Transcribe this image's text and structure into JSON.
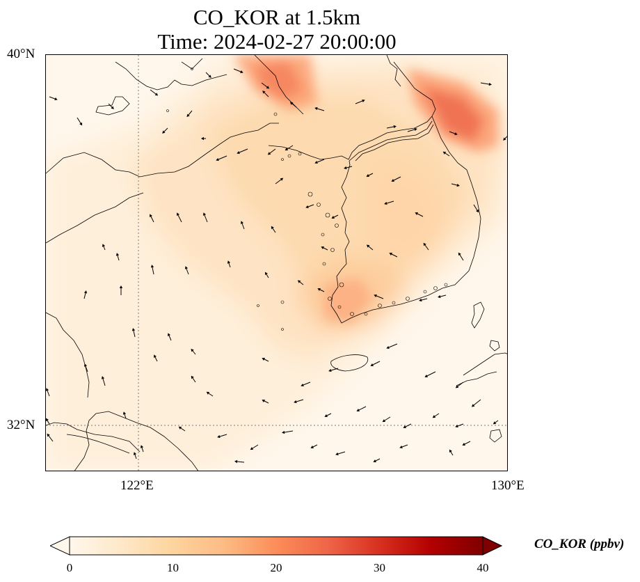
{
  "title": {
    "line1": "CO_KOR at 1.5km",
    "line2": "Time: 2024-02-27 20:00:00"
  },
  "map": {
    "lon_range": [
      120,
      130
    ],
    "lat_range": [
      31,
      40
    ],
    "lat_ticks": [
      {
        "label": "40°N",
        "value": 40
      },
      {
        "label": "32°N",
        "value": 32
      }
    ],
    "lon_ticks": [
      {
        "label": "122°E",
        "value": 122
      },
      {
        "label": "130°E",
        "value": 130
      }
    ],
    "gridlines": "dotted gray at 122°E and 32°N",
    "features": [
      "coastlines",
      "wind-vectors",
      "CO concentration field"
    ]
  },
  "colorbar": {
    "label": "CO_KOR (ppbv)",
    "min": 0,
    "max": 40,
    "ticks": [
      "0",
      "10",
      "20",
      "30",
      "40"
    ],
    "colormap": "OrRd",
    "colors": [
      "#fff7ec",
      "#fee8c8",
      "#fdd49e",
      "#fdbb84",
      "#fc8d59",
      "#ef6548",
      "#d7301f",
      "#b30000",
      "#7f0000"
    ],
    "extend": "both"
  }
}
